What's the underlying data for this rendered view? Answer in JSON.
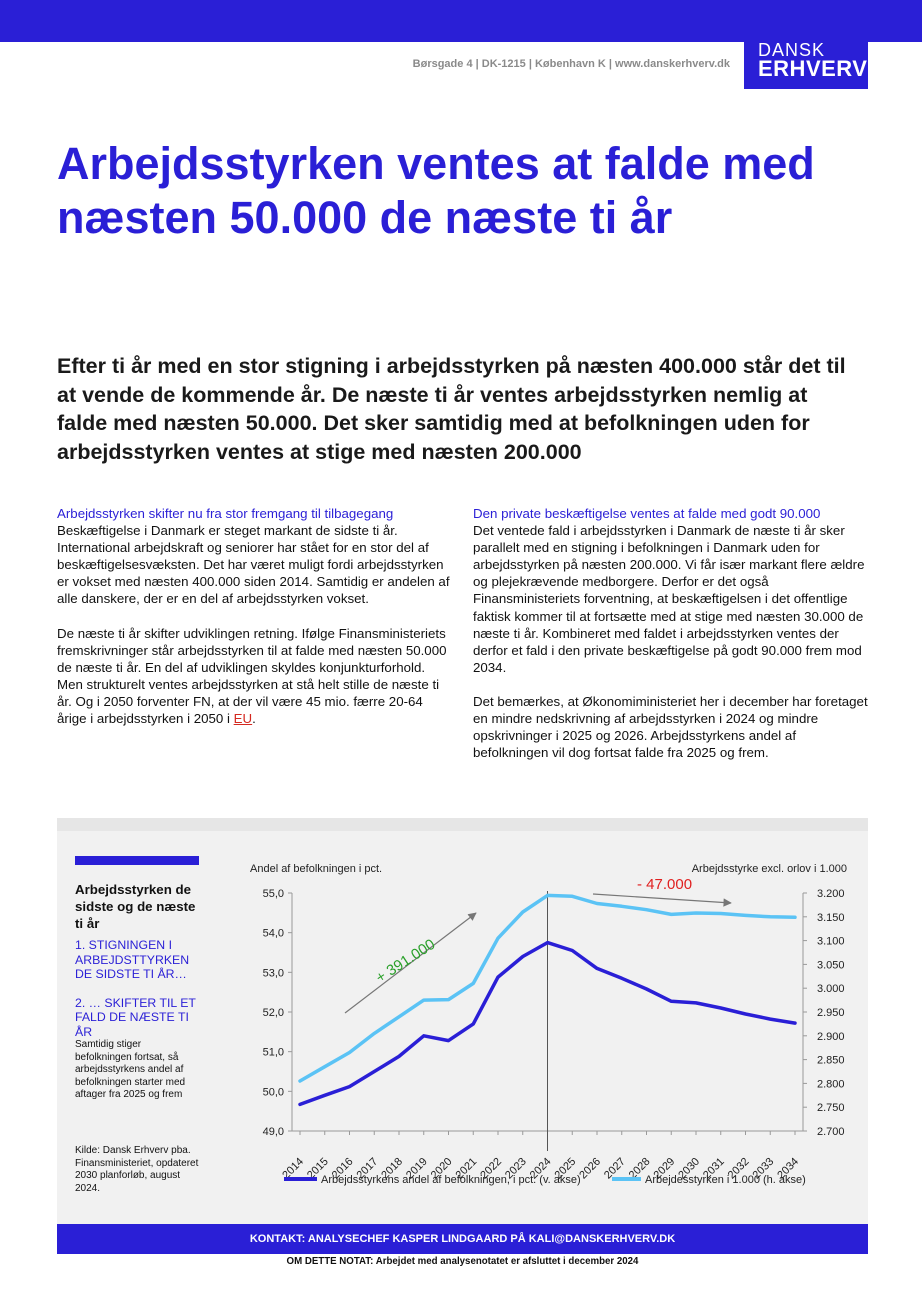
{
  "header": {
    "address": "Børsgade 4 | DK-1215 | København K | www.danskerhverv.dk",
    "logo_line1": "DANSK",
    "logo_line2": "ERHVERV",
    "brand_color": "#2a1fd6"
  },
  "title": "Arbejdsstyrken ventes at falde med næsten 50.000 de næste ti år",
  "lead": "Efter ti år med en stor stigning i arbejdsstyrken på næsten 400.000 står det til at vende de kommende år. De næste ti år ventes arbejdsstyrken nemlig at falde med næsten 50.000. Det sker samtidig med at befolkningen uden for arbejdsstyrken ventes at stige med næsten 200.000",
  "left_column": {
    "heading": "Arbejdsstyrken skifter nu fra stor fremgang til tilbagegang",
    "p1": "Beskæftigelse i Danmark er steget markant de sidste ti år. International arbejdskraft og seniorer har stået for en stor del af beskæftigelsesvæksten. Det har været muligt fordi arbejdsstyrken er vokset med næsten 400.000 siden 2014. Samtidig er andelen af alle danskere, der er en del af arbejdsstyrken vokset.",
    "p2": "De næste ti år skifter udviklingen retning. Ifølge Finansministeriets fremskrivninger står arbejdsstyrken til at falde med næsten 50.000 de næste ti år. En del af udviklingen skyldes konjunkturforhold. Men strukturelt ventes arbejdsstyrken at stå helt stille de næste ti år. Og i 2050 forventer FN, at der vil være 45 mio. færre 20-64 årige i arbejdsstyrken i 2050 i ",
    "p2_link": "EU",
    "p2_end": "."
  },
  "right_column": {
    "heading": "Den private beskæftigelse ventes at falde med godt 90.000",
    "p1": "Det ventede fald i arbejdsstyrken i Danmark de næste ti år sker parallelt med en stigning i befolkningen i Danmark uden for arbejdsstyrken på næsten 200.000. Vi får især markant flere ældre og plejekrævende medborgere. Derfor er det også Finansministeriets forventning, at beskæftigelsen i det offentlige faktisk kommer til at fortsætte med at stige med næsten 30.000 de næste ti år. Kombineret med faldet i arbejdsstyrken ventes der derfor et fald i den private beskæftigelse på godt 90.000 frem mod 2034.",
    "p2": "Det bemærkes, at Økonomiministeriet her i december har foretaget en mindre nedskrivning af arbejdsstyrken i 2024 og mindre opskrivninger i 2025 og 2026. Arbejdsstyrkens andel af befolkningen vil dog fortsat falde fra 2025 og frem."
  },
  "figure_sidebar": {
    "title": "Arbejdsstyrken de sidste og de næste ti år",
    "point1": "1. STIGNINGEN I ARBEJDSTTYRKEN DE SIDSTE TI ÅR…",
    "point2": "2. … SKIFTER TIL ET FALD DE NÆSTE TI ÅR",
    "note": "Samtidig stiger befolkningen fortsat, så arbejdsstyrkens andel af befolkningen starter med aftager fra 2025 og frem",
    "source": "Kilde: Dansk Erhverv pba. Finansministeriet, opdateret 2030 planforløb, august 2024."
  },
  "chart_data": {
    "type": "line",
    "left_axis_label": "Andel af befolkningen i pct.",
    "right_axis_label": "Arbejdsstyrke excl. orlov i 1.000",
    "x": [
      "2014",
      "2015",
      "2016",
      "2017",
      "2018",
      "2019",
      "2020",
      "2021",
      "2022",
      "2023",
      "2024",
      "2025",
      "2026",
      "2027",
      "2028",
      "2029",
      "2030",
      "2031",
      "2032",
      "2033",
      "2034"
    ],
    "left_ylim": [
      49.0,
      55.0
    ],
    "left_ticks": [
      "49,0",
      "50,0",
      "51,0",
      "52,0",
      "53,0",
      "54,0",
      "55,0"
    ],
    "right_ylim": [
      2700,
      3200
    ],
    "right_ticks": [
      "2.700",
      "2.750",
      "2.800",
      "2.850",
      "2.900",
      "2.950",
      "3.000",
      "3.050",
      "3.100",
      "3.150",
      "3.200"
    ],
    "series": [
      {
        "name": "Arbejdsstyrkens andel af befolkningen, i pct. (v. akse)",
        "axis": "left",
        "color": "#2a1fd6",
        "values": [
          49.67,
          49.9,
          50.12,
          50.5,
          50.88,
          51.4,
          51.28,
          51.7,
          52.88,
          53.4,
          53.75,
          53.55,
          53.1,
          52.85,
          52.58,
          52.27,
          52.23,
          52.1,
          51.95,
          51.82,
          51.72
        ]
      },
      {
        "name": "Arbejdesstyrken i 1.000 (h. akse)",
        "axis": "right",
        "color": "#5bc3f5",
        "values": [
          2805,
          2835,
          2865,
          2905,
          2940,
          2975,
          2976,
          3010,
          3105,
          3160,
          3195,
          3193,
          3178,
          3172,
          3165,
          3155,
          3158,
          3157,
          3153,
          3150,
          3149
        ]
      }
    ],
    "annotations": [
      {
        "text": "+ 391.000",
        "color": "#2aa02a"
      },
      {
        "text": "- 47.000",
        "color": "#e02020"
      }
    ],
    "vertical_marker_x": "2024"
  },
  "footer": {
    "contact": "KONTAKT: ANALYSECHEF KASPER LINDGAARD PÅ KALI@DANSKERHVERV.DK",
    "about": "OM DETTE NOTAT: Arbejdet med analysenotatet er afsluttet i december 2024"
  }
}
